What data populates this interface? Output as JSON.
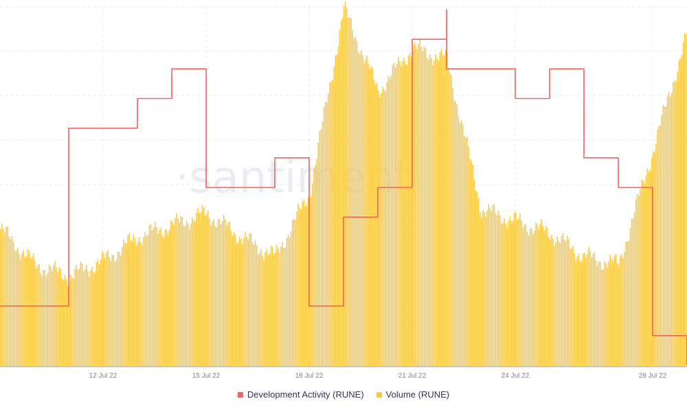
{
  "chart_data": {
    "type": "bar",
    "watermark": "·santiment",
    "x_start": "2022-07-09",
    "x_end": "2022-07-29",
    "xticks": [
      "12 Jul 22",
      "15 Jul 22",
      "18 Jul 22",
      "21 Jul 22",
      "24 Jul 22",
      "28 Jul 22"
    ],
    "grid": true,
    "legend_position": "bottom",
    "series": [
      {
        "name": "Development Activity (RUNE)",
        "kind": "line",
        "color": "#f2645a",
        "x": [
          "2022-07-09",
          "2022-07-10",
          "2022-07-11",
          "2022-07-11",
          "2022-07-12",
          "2022-07-13",
          "2022-07-13",
          "2022-07-14",
          "2022-07-14",
          "2022-07-15",
          "2022-07-15",
          "2022-07-16",
          "2022-07-16",
          "2022-07-17",
          "2022-07-17",
          "2022-07-18",
          "2022-07-18",
          "2022-07-18",
          "2022-07-19",
          "2022-07-19",
          "2022-07-20",
          "2022-07-20",
          "2022-07-21",
          "2022-07-21",
          "2022-07-22",
          "2022-07-22",
          "2022-07-23",
          "2022-07-24",
          "2022-07-24",
          "2022-07-25",
          "2022-07-25",
          "2022-07-26",
          "2022-07-26",
          "2022-07-27",
          "2022-07-27",
          "2022-07-28",
          "2022-07-28",
          "2022-07-29"
        ],
        "values": [
          2,
          2,
          2,
          8,
          8,
          8,
          9,
          9,
          10,
          7,
          6,
          6,
          6,
          6,
          7,
          7,
          3,
          2,
          2,
          5,
          6,
          6,
          9,
          11,
          12,
          10,
          10,
          9,
          9,
          10,
          10,
          10,
          7,
          6,
          6,
          3,
          1,
          0
        ]
      },
      {
        "name": "Volume (RUNE)",
        "kind": "bar",
        "color": "#f7c948",
        "x": [
          "2022-07-09",
          "2022-07-10",
          "2022-07-11",
          "2022-07-12",
          "2022-07-13",
          "2022-07-14",
          "2022-07-15",
          "2022-07-16",
          "2022-07-17",
          "2022-07-18",
          "2022-07-19",
          "2022-07-20",
          "2022-07-21",
          "2022-07-22",
          "2022-07-23",
          "2022-07-24",
          "2022-07-25",
          "2022-07-26",
          "2022-07-27",
          "2022-07-28",
          "2022-07-29"
        ],
        "values": [
          35,
          26,
          23,
          27,
          33,
          36,
          39,
          33,
          28,
          44,
          91,
          70,
          81,
          78,
          40,
          37,
          34,
          28,
          26,
          55,
          85
        ]
      }
    ]
  },
  "legend": {
    "dev_label": "Development Activity (RUNE)",
    "vol_label": "Volume (RUNE)"
  },
  "colors": {
    "dev": "#f2645a",
    "volume": "#f7c948",
    "grid": "#e4e8ef",
    "axis": "#9faac4"
  }
}
